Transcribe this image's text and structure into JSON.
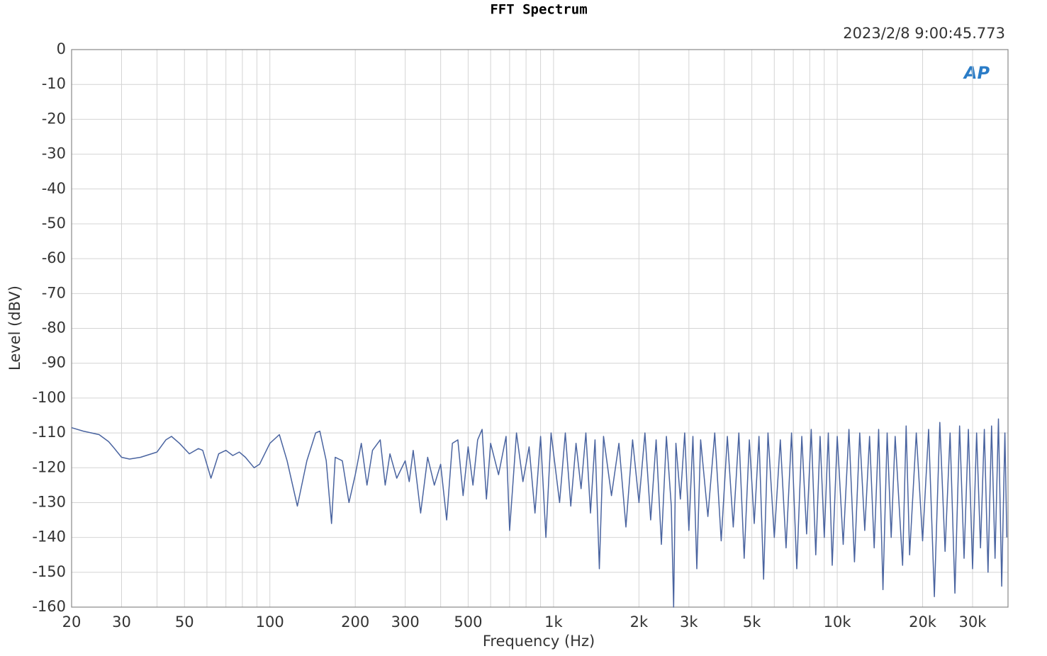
{
  "chart_data": {
    "type": "line",
    "title": "FFT Spectrum",
    "timestamp": "2023/2/8 9:00:45.773",
    "logo": "AP",
    "xlabel": "Frequency (Hz)",
    "ylabel": "Level (dBV)",
    "xscale": "log",
    "grid": true,
    "xlim": [
      20,
      40000
    ],
    "ylim": [
      -160,
      0
    ],
    "xticks": [
      20,
      30,
      50,
      100,
      200,
      300,
      500,
      {
        "value": 1000,
        "label": "1k"
      },
      {
        "value": 2000,
        "label": "2k"
      },
      {
        "value": 3000,
        "label": "3k"
      },
      {
        "value": 5000,
        "label": "5k"
      },
      {
        "value": 10000,
        "label": "10k"
      },
      {
        "value": 20000,
        "label": "20k"
      },
      {
        "value": 30000,
        "label": "30k"
      }
    ],
    "minor_xticks": [
      40,
      60,
      70,
      80,
      90,
      400,
      600,
      700,
      800,
      900,
      4000,
      6000,
      7000,
      8000,
      9000,
      40000
    ],
    "yticks": [
      0,
      -10,
      -20,
      -30,
      -40,
      -50,
      -60,
      -70,
      -80,
      -90,
      -100,
      -110,
      -120,
      -130,
      -140,
      -150,
      -160
    ],
    "series": [
      {
        "name": "Level",
        "color": "#4a64a0",
        "x": [
          20,
          22,
          25,
          27,
          28,
          30,
          32,
          35,
          40,
          43,
          45,
          48,
          52,
          56,
          58,
          62,
          66,
          70,
          74,
          78,
          82,
          88,
          92,
          100,
          108,
          115,
          125,
          135,
          145,
          150,
          158,
          165,
          170,
          180,
          190,
          200,
          210,
          220,
          230,
          245,
          255,
          265,
          280,
          300,
          310,
          320,
          340,
          360,
          380,
          400,
          420,
          440,
          460,
          480,
          500,
          520,
          540,
          560,
          580,
          600,
          640,
          680,
          700,
          740,
          780,
          820,
          860,
          900,
          940,
          980,
          1050,
          1100,
          1150,
          1200,
          1250,
          1300,
          1350,
          1400,
          1450,
          1500,
          1600,
          1700,
          1800,
          1900,
          2000,
          2100,
          2200,
          2300,
          2400,
          2500,
          2600,
          2650,
          2700,
          2800,
          2900,
          3000,
          3100,
          3200,
          3300,
          3500,
          3700,
          3900,
          4100,
          4300,
          4500,
          4700,
          4900,
          5100,
          5300,
          5500,
          5700,
          6000,
          6300,
          6600,
          6900,
          7200,
          7500,
          7800,
          8100,
          8400,
          8700,
          9000,
          9300,
          9600,
          10000,
          10500,
          11000,
          11500,
          12000,
          12500,
          13000,
          13500,
          14000,
          14500,
          15000,
          15500,
          16000,
          17000,
          17500,
          18000,
          19000,
          20000,
          21000,
          22000,
          23000,
          24000,
          25000,
          26000,
          27000,
          28000,
          29000,
          30000,
          31000,
          32000,
          33000,
          34000,
          35000,
          36000,
          37000,
          38000,
          39000,
          39600
        ],
        "values": [
          -108.5,
          -109.5,
          -110.5,
          -112.5,
          -114,
          -117,
          -117.5,
          -117,
          -115.5,
          -112,
          -111,
          -113,
          -116,
          -114.5,
          -115,
          -123,
          -116,
          -115,
          -116.5,
          -115.5,
          -117,
          -120,
          -119,
          -113,
          -110.5,
          -118,
          -131,
          -118,
          -110,
          -109.5,
          -118,
          -136,
          -117,
          -118,
          -130,
          -122,
          -113,
          -125,
          -115,
          -112,
          -125,
          -116,
          -123,
          -118,
          -124,
          -115,
          -133,
          -117,
          -125,
          -119,
          -135,
          -113,
          -112,
          -128,
          -114,
          -125,
          -112,
          -109,
          -129,
          -113,
          -122,
          -111,
          -138,
          -110,
          -124,
          -114,
          -133,
          -111,
          -140,
          -110,
          -130,
          -110,
          -131,
          -113,
          -126,
          -110,
          -133,
          -112,
          -149,
          -111,
          -128,
          -113,
          -137,
          -112,
          -130,
          -110,
          -135,
          -112,
          -142,
          -111,
          -131,
          -160,
          -113,
          -129,
          -110,
          -138,
          -111,
          -149,
          -112,
          -134,
          -110,
          -141,
          -111,
          -137,
          -110,
          -146,
          -112,
          -136,
          -111,
          -152,
          -110,
          -140,
          -112,
          -143,
          -110,
          -149,
          -111,
          -139,
          -109,
          -145,
          -111,
          -140,
          -110,
          -148,
          -111,
          -142,
          -109,
          -147,
          -110,
          -138,
          -111,
          -143,
          -109,
          -155,
          -110,
          -140,
          -111,
          -148,
          -108,
          -145,
          -110,
          -141,
          -109,
          -157,
          -107,
          -144,
          -110,
          -156,
          -108,
          -146,
          -109,
          -149,
          -110,
          -143,
          -109,
          -150,
          -108,
          -146,
          -106,
          -154,
          -110,
          -140
        ]
      }
    ]
  }
}
